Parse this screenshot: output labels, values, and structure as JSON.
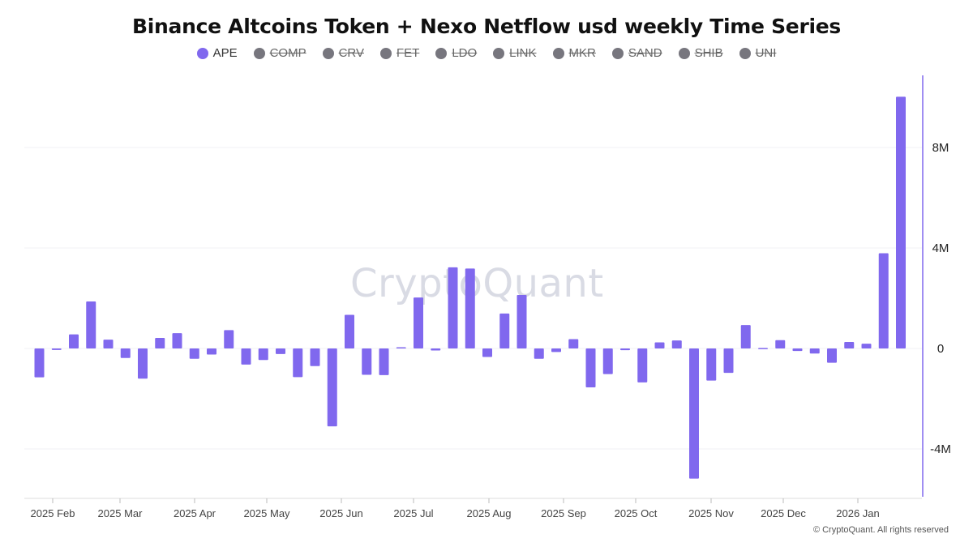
{
  "chart_data": {
    "type": "bar",
    "title": "Binance Altcoins Token + Nexo Netflow usd weekly Time Series",
    "legend": [
      {
        "name": "APE",
        "active": true,
        "color": "#8068ee"
      },
      {
        "name": "COMP",
        "active": false,
        "color": "#77767e"
      },
      {
        "name": "CRV",
        "active": false,
        "color": "#77767e"
      },
      {
        "name": "FET",
        "active": false,
        "color": "#77767e"
      },
      {
        "name": "LDO",
        "active": false,
        "color": "#77767e"
      },
      {
        "name": "LINK",
        "active": false,
        "color": "#77767e"
      },
      {
        "name": "MKR",
        "active": false,
        "color": "#77767e"
      },
      {
        "name": "SAND",
        "active": false,
        "color": "#77767e"
      },
      {
        "name": "SHIB",
        "active": false,
        "color": "#77767e"
      },
      {
        "name": "UNI",
        "active": false,
        "color": "#77767e"
      }
    ],
    "legend_placement": "top-center",
    "ylim": [
      -6000000,
      10500000
    ],
    "y_ticks": [
      {
        "value": 8000000,
        "label": "8M"
      },
      {
        "value": 4000000,
        "label": "4M"
      },
      {
        "value": 0,
        "label": "0"
      },
      {
        "value": -4000000,
        "label": "-4M"
      }
    ],
    "y_axis_side": "right",
    "x_ticks": [
      "2025 Feb",
      "2025 Mar",
      "2025 Apr",
      "2025 May",
      "2025 Jun",
      "2025 Jul",
      "2025 Aug",
      "2025 Sep",
      "2025 Oct",
      "2025 Nov",
      "2025 Dec",
      "2026 Jan"
    ],
    "grid": true,
    "series": [
      {
        "name": "APE",
        "color": "#8068ee",
        "values": [
          -1150000,
          -60000,
          560000,
          1870000,
          350000,
          -380000,
          -1200000,
          420000,
          610000,
          -410000,
          -240000,
          730000,
          -640000,
          -460000,
          -220000,
          -1140000,
          -700000,
          -3100000,
          1340000,
          -1050000,
          -1060000,
          50000,
          2030000,
          -80000,
          3230000,
          3180000,
          -340000,
          1390000,
          2130000,
          -410000,
          -140000,
          370000,
          -1550000,
          -1020000,
          -70000,
          -1350000,
          240000,
          320000,
          -5180000,
          -1280000,
          -970000,
          930000,
          20000,
          330000,
          -100000,
          -200000,
          -570000,
          260000,
          190000,
          3790000,
          10020000
        ]
      }
    ]
  },
  "watermark": "CryptoQuant",
  "copyright": "© CryptoQuant. All rights reserved"
}
